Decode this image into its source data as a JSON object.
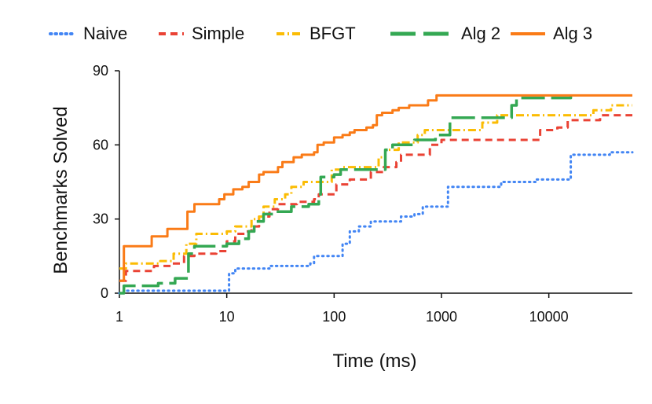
{
  "chart_data": {
    "type": "line",
    "title": "",
    "xlabel": "Time (ms)",
    "ylabel": "Benchmarks Solved",
    "x_scale": "log",
    "xlim": [
      1,
      60000
    ],
    "ylim": [
      0,
      90
    ],
    "x_ticks": [
      1,
      10,
      100,
      1000,
      10000
    ],
    "x_tick_labels": [
      "1",
      "10",
      "100",
      "1000",
      "10000"
    ],
    "y_ticks": [
      0,
      30,
      60,
      90
    ],
    "y_tick_labels": [
      "0",
      "30",
      "60",
      "90"
    ],
    "legend_position": "top",
    "series": [
      {
        "name": "Naive",
        "color": "#4285F4",
        "dash": "dotted",
        "points": [
          [
            1,
            0
          ],
          [
            1.1,
            1
          ],
          [
            10,
            1
          ],
          [
            10.5,
            8
          ],
          [
            12,
            10
          ],
          [
            20,
            10
          ],
          [
            25,
            11
          ],
          [
            55,
            11
          ],
          [
            60,
            12
          ],
          [
            65,
            15
          ],
          [
            100,
            15
          ],
          [
            120,
            20
          ],
          [
            140,
            25
          ],
          [
            170,
            27
          ],
          [
            220,
            29
          ],
          [
            330,
            29
          ],
          [
            420,
            31
          ],
          [
            560,
            32
          ],
          [
            670,
            35
          ],
          [
            900,
            35
          ],
          [
            1150,
            43
          ],
          [
            2800,
            43
          ],
          [
            3600,
            45
          ],
          [
            6000,
            45
          ],
          [
            7500,
            46
          ],
          [
            14000,
            46
          ],
          [
            16000,
            56
          ],
          [
            30000,
            56
          ],
          [
            37000,
            57
          ],
          [
            60000,
            57
          ]
        ]
      },
      {
        "name": "Simple",
        "color": "#EA4335",
        "dash": "dashed",
        "points": [
          [
            1,
            5
          ],
          [
            1.15,
            9
          ],
          [
            1.7,
            9
          ],
          [
            2.1,
            11
          ],
          [
            3,
            12
          ],
          [
            4,
            15
          ],
          [
            5,
            16
          ],
          [
            8,
            17
          ],
          [
            10,
            21
          ],
          [
            12,
            24
          ],
          [
            15,
            25
          ],
          [
            17,
            27
          ],
          [
            20,
            31
          ],
          [
            25,
            34
          ],
          [
            30,
            36
          ],
          [
            40,
            36
          ],
          [
            45,
            37
          ],
          [
            65,
            38
          ],
          [
            72,
            40
          ],
          [
            90,
            40
          ],
          [
            105,
            44
          ],
          [
            140,
            46
          ],
          [
            180,
            46
          ],
          [
            220,
            49
          ],
          [
            290,
            51
          ],
          [
            380,
            53
          ],
          [
            420,
            56
          ],
          [
            630,
            56
          ],
          [
            780,
            60
          ],
          [
            1000,
            62
          ],
          [
            6800,
            62
          ],
          [
            8300,
            66
          ],
          [
            12000,
            67
          ],
          [
            15000,
            70
          ],
          [
            18000,
            70
          ],
          [
            30000,
            72
          ],
          [
            60000,
            72
          ]
        ]
      },
      {
        "name": "BFGT",
        "color": "#FBBC04",
        "dash": "dashdot",
        "points": [
          [
            1,
            10
          ],
          [
            1.15,
            12
          ],
          [
            2.1,
            12
          ],
          [
            2.4,
            13
          ],
          [
            3.2,
            16
          ],
          [
            4.2,
            20
          ],
          [
            5.2,
            24
          ],
          [
            9,
            24
          ],
          [
            10,
            25
          ],
          [
            12,
            27
          ],
          [
            17,
            30
          ],
          [
            20,
            31
          ],
          [
            22,
            35
          ],
          [
            28,
            38
          ],
          [
            35,
            40
          ],
          [
            40,
            43
          ],
          [
            52,
            45
          ],
          [
            80,
            45
          ],
          [
            95,
            50
          ],
          [
            120,
            51
          ],
          [
            210,
            51
          ],
          [
            260,
            55
          ],
          [
            300,
            58
          ],
          [
            400,
            61
          ],
          [
            600,
            64
          ],
          [
            700,
            66
          ],
          [
            2100,
            66
          ],
          [
            2400,
            69
          ],
          [
            3300,
            72
          ],
          [
            4200,
            72
          ],
          [
            24000,
            72
          ],
          [
            26000,
            74
          ],
          [
            38000,
            76
          ],
          [
            60000,
            76
          ]
        ]
      },
      {
        "name": "Alg 2",
        "color": "#34A853",
        "dash": "longdash",
        "points": [
          [
            1,
            0
          ],
          [
            1.1,
            3
          ],
          [
            2,
            3
          ],
          [
            2.3,
            4
          ],
          [
            3.3,
            6
          ],
          [
            4.2,
            6
          ],
          [
            4.4,
            16
          ],
          [
            5,
            19
          ],
          [
            9,
            19
          ],
          [
            10,
            20
          ],
          [
            13,
            22
          ],
          [
            16,
            25
          ],
          [
            18,
            29
          ],
          [
            22,
            32
          ],
          [
            27,
            33
          ],
          [
            40,
            35
          ],
          [
            55,
            35
          ],
          [
            58,
            36
          ],
          [
            72,
            40
          ],
          [
            75,
            47
          ],
          [
            90,
            47
          ],
          [
            100,
            48
          ],
          [
            115,
            50
          ],
          [
            200,
            50
          ],
          [
            300,
            58
          ],
          [
            350,
            60
          ],
          [
            490,
            60
          ],
          [
            560,
            62
          ],
          [
            700,
            62
          ],
          [
            880,
            64
          ],
          [
            1200,
            71
          ],
          [
            3500,
            71
          ],
          [
            4500,
            76
          ],
          [
            5000,
            79
          ],
          [
            14000,
            79
          ],
          [
            16000,
            80
          ]
        ]
      },
      {
        "name": "Alg 3",
        "color": "#FA7B17",
        "dash": "solid",
        "points": [
          [
            1,
            5
          ],
          [
            1.1,
            19
          ],
          [
            1.9,
            19
          ],
          [
            2,
            23
          ],
          [
            2.8,
            26
          ],
          [
            3.8,
            26
          ],
          [
            4.3,
            33
          ],
          [
            5,
            36
          ],
          [
            7.5,
            36
          ],
          [
            8.5,
            38
          ],
          [
            9.5,
            40
          ],
          [
            11.5,
            42
          ],
          [
            14,
            43
          ],
          [
            16,
            45
          ],
          [
            20,
            48
          ],
          [
            22,
            49
          ],
          [
            30,
            51
          ],
          [
            33,
            53
          ],
          [
            42,
            55
          ],
          [
            50,
            56
          ],
          [
            65,
            57
          ],
          [
            70,
            60
          ],
          [
            80,
            61
          ],
          [
            100,
            63
          ],
          [
            120,
            64
          ],
          [
            140,
            65
          ],
          [
            155,
            66
          ],
          [
            200,
            67
          ],
          [
            230,
            68
          ],
          [
            250,
            72
          ],
          [
            280,
            73
          ],
          [
            350,
            74
          ],
          [
            400,
            75
          ],
          [
            500,
            76
          ],
          [
            750,
            78
          ],
          [
            900,
            80
          ],
          [
            60000,
            80
          ]
        ]
      }
    ]
  }
}
